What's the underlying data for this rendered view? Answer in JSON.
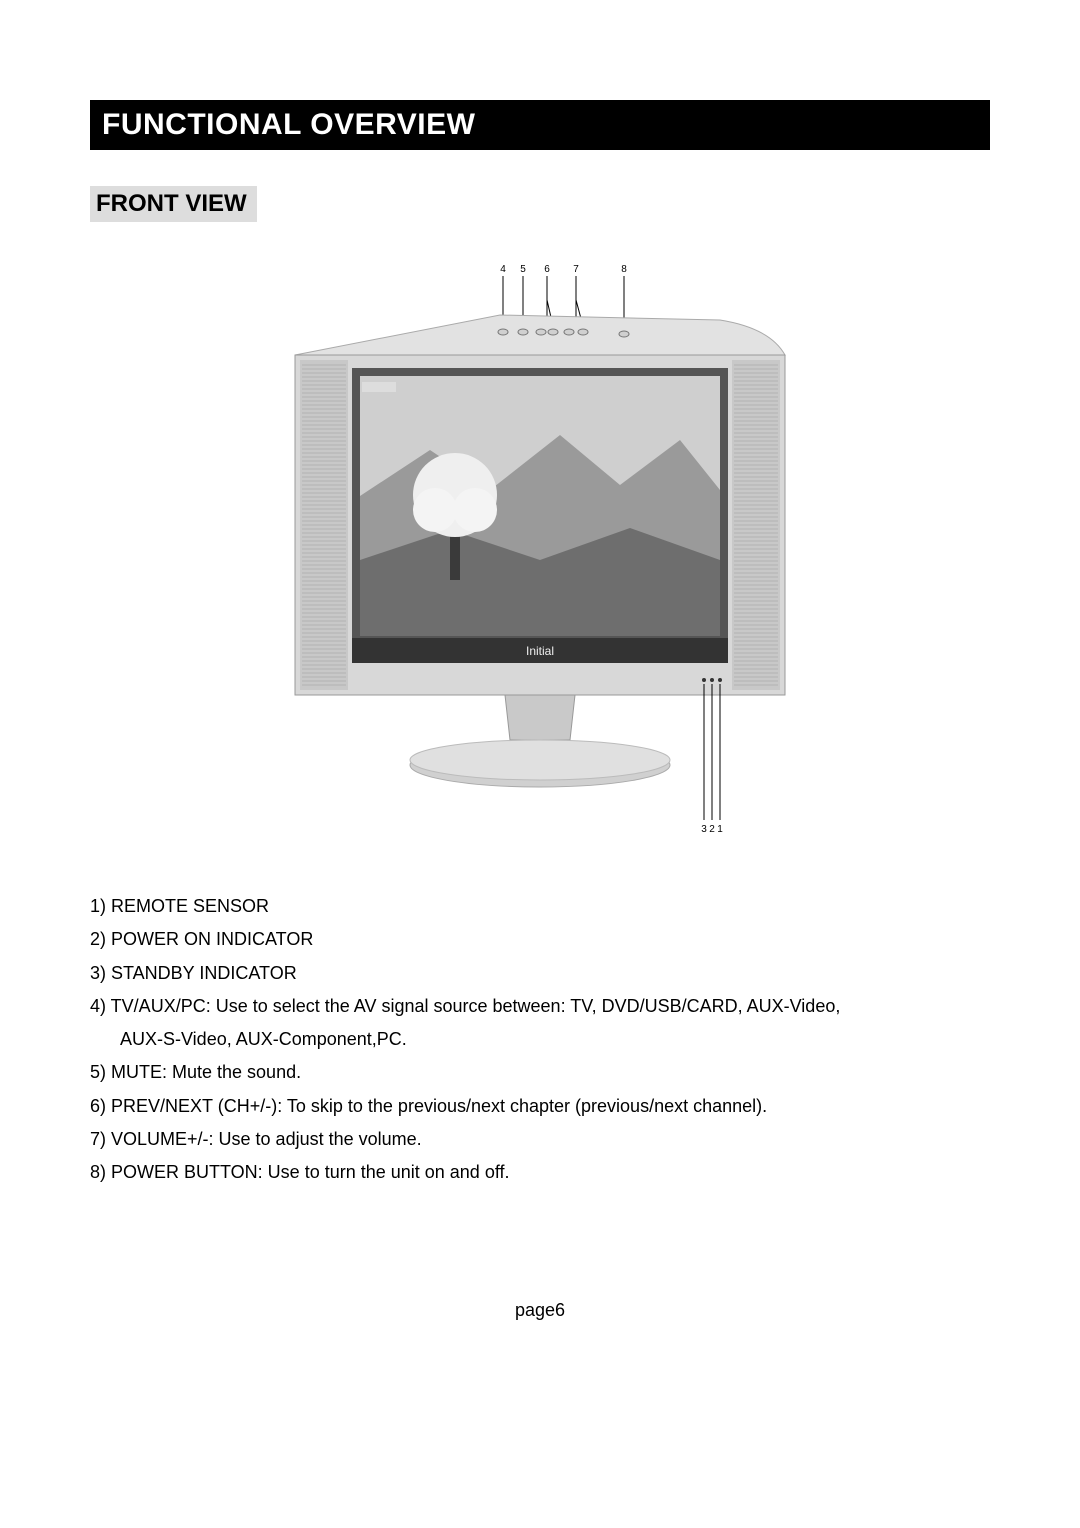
{
  "title": "FUNCTIONAL OVERVIEW",
  "subheading": "FRONT VIEW",
  "diagram": {
    "top_labels": [
      "4",
      "5",
      "6",
      "7",
      "8"
    ],
    "bottom_labels": [
      "3",
      "2",
      "1"
    ],
    "brand_text": "Initial",
    "colors": {
      "bezel_light": "#d8d8d8",
      "bezel_mid": "#bdbdbd",
      "bezel_dark": "#888888",
      "screen_border": "#555555",
      "stand": "#c9c9c9",
      "line": "#000000",
      "label_font": "#000000"
    },
    "label_fontsize": 10
  },
  "list_items": [
    "1) REMOTE SENSOR",
    "2) POWER ON INDICATOR",
    "3) STANDBY INDICATOR",
    "4) TV/AUX/PC: Use to select the AV signal source between: TV, DVD/USB/CARD, AUX-Video,",
    "AUX-S-Video, AUX-Component,PC.",
    "5) MUTE: Mute the sound.",
    "6) PREV/NEXT (CH+/-): To skip to the previous/next chapter (previous/next channel).",
    "7) VOLUME+/-: Use to adjust the volume.",
    "8) POWER BUTTON: Use to turn the unit on and off."
  ],
  "list_indent_indices": [
    4
  ],
  "footer": "page6"
}
